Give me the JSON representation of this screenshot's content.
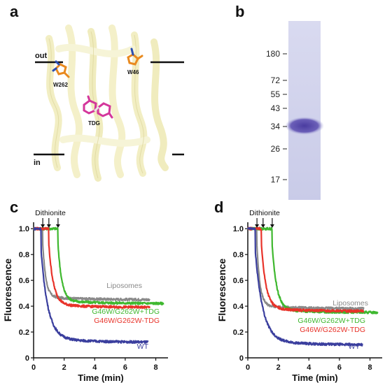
{
  "panels": {
    "a": {
      "letter": "a",
      "labels": {
        "out": "out",
        "in": "in",
        "w262": "W262",
        "w46": "W46",
        "tdg": "TDG"
      }
    },
    "b": {
      "letter": "b",
      "markers": [
        "180",
        "72",
        "55",
        "43",
        "34",
        "26",
        "17"
      ]
    },
    "c": {
      "letter": "c"
    },
    "d": {
      "letter": "d"
    }
  },
  "colors": {
    "wt": "#3b3f9e",
    "minus_tdg": "#e8332a",
    "plus_tdg": "#3fb82f",
    "liposomes": "#8a8a8a",
    "gel_band": "#5b4ca8",
    "gel_bg": "#cfd0ec",
    "helix": "#f3efbf"
  },
  "chart_data": [
    {
      "type": "line",
      "panel": "c",
      "xlabel": "Time (min)",
      "ylabel": "Fluorescence",
      "xlim": [
        0,
        8.8
      ],
      "ylim": [
        0,
        1.05
      ],
      "xticks": [
        0,
        2,
        4,
        6,
        8
      ],
      "yticks": [
        0,
        0.2,
        0.4,
        0.6,
        0.8,
        1.0
      ],
      "yticklabels": [
        "0",
        "0.2",
        "0.4",
        "0.6",
        "0.8",
        "1.0"
      ],
      "annotation": "Dithionite",
      "arrows_x": [
        0.6,
        1.0,
        1.6
      ],
      "series": [
        {
          "name": "Liposomes",
          "key": "liposomes",
          "drop_at": 0.6,
          "plateau": 0.45,
          "end_x": 7.6,
          "tau": 0.2
        },
        {
          "name": "G46W/G262W+TDG",
          "key": "plus_tdg",
          "drop_at": 1.6,
          "plateau": 0.42,
          "end_x": 8.5,
          "tau": 0.25
        },
        {
          "name": "G46W/G262W-TDG",
          "key": "minus_tdg",
          "drop_at": 1.0,
          "plateau": 0.39,
          "end_x": 7.6,
          "tau": 0.3
        },
        {
          "name": "WT",
          "key": "wt",
          "drop_at": 0.5,
          "plateau": 0.12,
          "end_x": 7.5,
          "tau": 0.45
        }
      ]
    },
    {
      "type": "line",
      "panel": "d",
      "xlabel": "Time (min)",
      "ylabel": "Fluorescence",
      "xlim": [
        0,
        8.8
      ],
      "ylim": [
        0,
        1.05
      ],
      "xticks": [
        0,
        2,
        4,
        6,
        8
      ],
      "yticks": [
        0,
        0.2,
        0.4,
        0.6,
        0.8,
        1.0
      ],
      "yticklabels": [
        "0",
        "0.2",
        "0.4",
        "0.6",
        "0.8",
        "1.0"
      ],
      "annotation": "Dithionite",
      "arrows_x": [
        0.6,
        1.0,
        1.6
      ],
      "series": [
        {
          "name": "Liposomes",
          "key": "liposomes",
          "drop_at": 0.6,
          "plateau": 0.38,
          "end_x": 7.6,
          "tau": 0.2
        },
        {
          "name": "G46W/G262W+TDG",
          "key": "plus_tdg",
          "drop_at": 1.6,
          "plateau": 0.35,
          "end_x": 8.5,
          "tau": 0.3
        },
        {
          "name": "G46W/G262W-TDG",
          "key": "minus_tdg",
          "drop_at": 0.9,
          "plateau": 0.36,
          "end_x": 7.6,
          "tau": 0.3
        },
        {
          "name": "WT",
          "key": "wt",
          "drop_at": 0.5,
          "plateau": 0.1,
          "end_x": 7.5,
          "tau": 0.5
        }
      ]
    }
  ]
}
